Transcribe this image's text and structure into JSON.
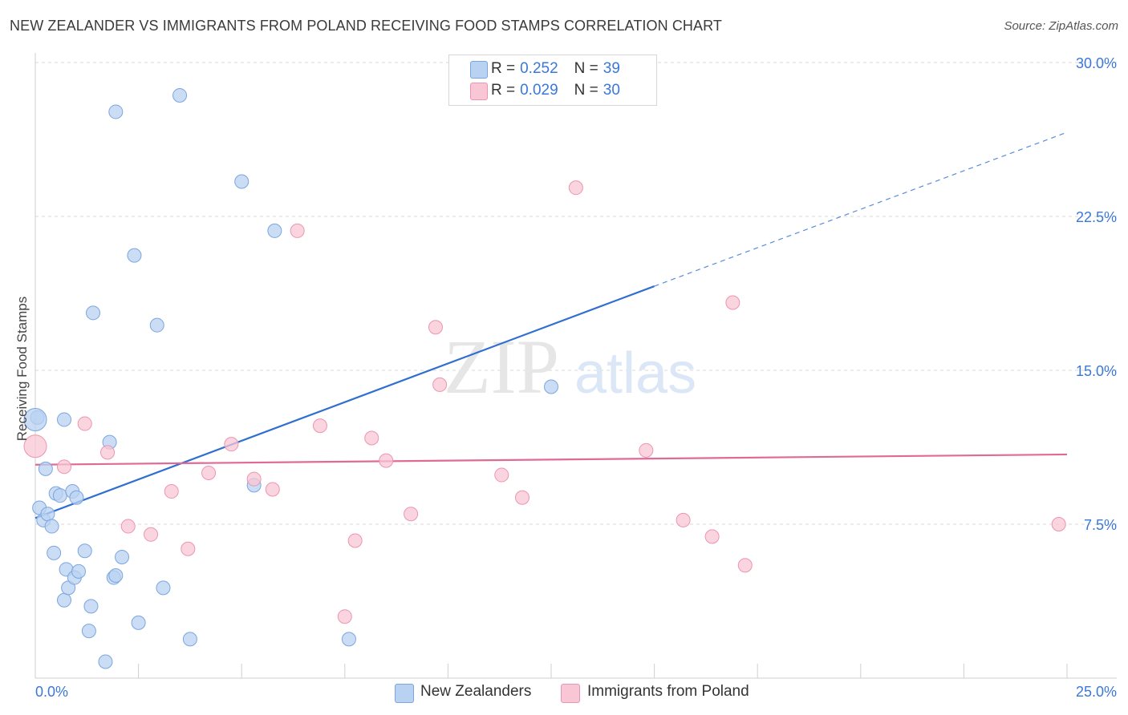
{
  "title": "NEW ZEALANDER VS IMMIGRANTS FROM POLAND RECEIVING FOOD STAMPS CORRELATION CHART",
  "source": "Source: ZipAtlas.com",
  "watermark": {
    "zip": "ZIP",
    "atlas": "atlas"
  },
  "legend": {
    "rows": [
      {
        "r_label": "R = ",
        "r_value": "0.252",
        "n_label": "N = ",
        "n_value": "39",
        "color": "#b9d2f2"
      },
      {
        "r_label": "R = ",
        "r_value": "0.029",
        "n_label": "N = ",
        "n_value": "30",
        "color": "#f8c6d4"
      }
    ]
  },
  "bottom_legend": {
    "series1": "New Zealanders",
    "series2": "Immigrants from Poland"
  },
  "colors": {
    "blue_fill": "#b9d2f2",
    "blue_stroke": "#7aa6df",
    "blue_line": "#2f6fd1",
    "pink_fill": "#f8c6d4",
    "pink_stroke": "#ec95b0",
    "pink_line": "#e06a96",
    "grid": "#d8d8d8",
    "tick_text": "#3a78d8"
  },
  "chart_data": {
    "type": "scatter",
    "title": "NEW ZEALANDER VS IMMIGRANTS FROM POLAND RECEIVING FOOD STAMPS CORRELATION CHART",
    "xlabel": "",
    "ylabel": "Receiving Food Stamps",
    "xlim": [
      0,
      25
    ],
    "ylim": [
      0,
      30
    ],
    "x_tick_labels": [
      "0.0%",
      "25.0%"
    ],
    "y_ticks": [
      7.5,
      15.0,
      22.5,
      30.0
    ],
    "y_tick_labels": [
      "7.5%",
      "15.0%",
      "22.5%",
      "30.0%"
    ],
    "grid": "horizontal dashed",
    "legend_position": "top-center",
    "series": [
      {
        "name": "New Zealanders",
        "points": [
          [
            0.05,
            12.7
          ],
          [
            0.1,
            8.3
          ],
          [
            0.2,
            7.7
          ],
          [
            0.25,
            10.2
          ],
          [
            0.3,
            8.0
          ],
          [
            0.4,
            7.4
          ],
          [
            0.45,
            6.1
          ],
          [
            0.5,
            9.0
          ],
          [
            0.6,
            8.9
          ],
          [
            0.7,
            3.8
          ],
          [
            0.7,
            12.6
          ],
          [
            0.75,
            5.3
          ],
          [
            0.8,
            4.4
          ],
          [
            0.9,
            9.1
          ],
          [
            0.95,
            4.9
          ],
          [
            1.0,
            8.8
          ],
          [
            1.05,
            5.2
          ],
          [
            1.2,
            6.2
          ],
          [
            1.3,
            2.3
          ],
          [
            1.35,
            3.5
          ],
          [
            1.4,
            17.8
          ],
          [
            1.7,
            0.8
          ],
          [
            1.8,
            11.5
          ],
          [
            1.9,
            4.9
          ],
          [
            1.95,
            5.0
          ],
          [
            1.95,
            27.6
          ],
          [
            2.1,
            5.9
          ],
          [
            2.4,
            20.6
          ],
          [
            2.5,
            2.7
          ],
          [
            2.95,
            17.2
          ],
          [
            3.1,
            4.4
          ],
          [
            3.5,
            28.4
          ],
          [
            3.75,
            1.9
          ],
          [
            5.0,
            24.2
          ],
          [
            5.3,
            9.4
          ],
          [
            5.8,
            21.8
          ],
          [
            7.6,
            1.9
          ],
          [
            12.5,
            14.2
          ],
          [
            0.0,
            12.6
          ]
        ],
        "trend": {
          "x": [
            0.0,
            15.0
          ],
          "y": [
            7.8,
            19.1
          ],
          "dashed_to": [
            25.0,
            26.6
          ]
        }
      },
      {
        "name": "Immigrants from Poland",
        "points": [
          [
            0.0,
            11.3
          ],
          [
            0.7,
            10.3
          ],
          [
            1.2,
            12.4
          ],
          [
            1.75,
            11.0
          ],
          [
            2.25,
            7.4
          ],
          [
            2.8,
            7.0
          ],
          [
            3.3,
            9.1
          ],
          [
            3.7,
            6.3
          ],
          [
            4.2,
            10.0
          ],
          [
            4.75,
            11.4
          ],
          [
            5.3,
            9.7
          ],
          [
            5.75,
            9.2
          ],
          [
            6.35,
            21.8
          ],
          [
            6.9,
            12.3
          ],
          [
            7.5,
            3.0
          ],
          [
            7.75,
            6.7
          ],
          [
            8.15,
            11.7
          ],
          [
            8.5,
            10.6
          ],
          [
            9.1,
            8.0
          ],
          [
            9.7,
            17.1
          ],
          [
            9.8,
            14.3
          ],
          [
            11.3,
            9.9
          ],
          [
            11.8,
            8.8
          ],
          [
            13.1,
            23.9
          ],
          [
            14.8,
            11.1
          ],
          [
            15.7,
            7.7
          ],
          [
            16.4,
            6.9
          ],
          [
            16.9,
            18.3
          ],
          [
            17.2,
            5.5
          ],
          [
            24.8,
            7.5
          ]
        ],
        "trend": {
          "x": [
            0.0,
            25.0
          ],
          "y": [
            10.4,
            10.9
          ]
        }
      }
    ]
  }
}
